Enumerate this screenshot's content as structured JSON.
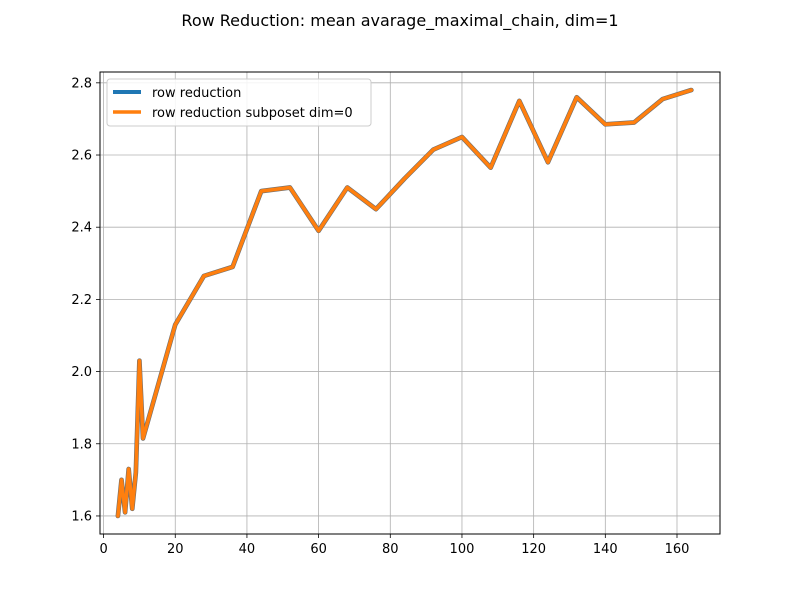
{
  "chart_data": {
    "type": "line",
    "title": "Row Reduction: mean avarage_maximal_chain, dim=1",
    "xlabel": "",
    "ylabel": "",
    "xlim": [
      -1.0,
      172.0
    ],
    "ylim": [
      1.55,
      2.83
    ],
    "grid": true,
    "legend_position": "top-left",
    "xticks": [
      0,
      20,
      40,
      60,
      80,
      100,
      120,
      140,
      160
    ],
    "yticks": [
      1.6,
      1.8,
      2.0,
      2.2,
      2.4,
      2.6,
      2.8
    ],
    "x": [
      4,
      5,
      6,
      7,
      8,
      9,
      10,
      11,
      20,
      28,
      36,
      44,
      52,
      60,
      68,
      76,
      84,
      92,
      100,
      108,
      116,
      124,
      132,
      140,
      148,
      156,
      164
    ],
    "series": [
      {
        "name": "row reduction",
        "color": "#1f77b4",
        "values": [
          1.6,
          1.7,
          1.61,
          1.73,
          1.62,
          1.72,
          2.03,
          1.815,
          2.13,
          2.265,
          2.29,
          2.5,
          2.51,
          2.39,
          2.51,
          2.45,
          2.535,
          2.615,
          2.65,
          2.565,
          2.75,
          2.58,
          2.76,
          2.685,
          2.69,
          2.755,
          2.78
        ]
      },
      {
        "name": "row reduction subposet dim=0",
        "color": "#ff7f0e",
        "values": [
          1.6,
          1.7,
          1.61,
          1.73,
          1.62,
          1.72,
          2.03,
          1.815,
          2.13,
          2.265,
          2.29,
          2.5,
          2.51,
          2.39,
          2.51,
          2.45,
          2.535,
          2.615,
          2.65,
          2.565,
          2.75,
          2.58,
          2.76,
          2.685,
          2.69,
          2.755,
          2.78
        ]
      }
    ]
  }
}
